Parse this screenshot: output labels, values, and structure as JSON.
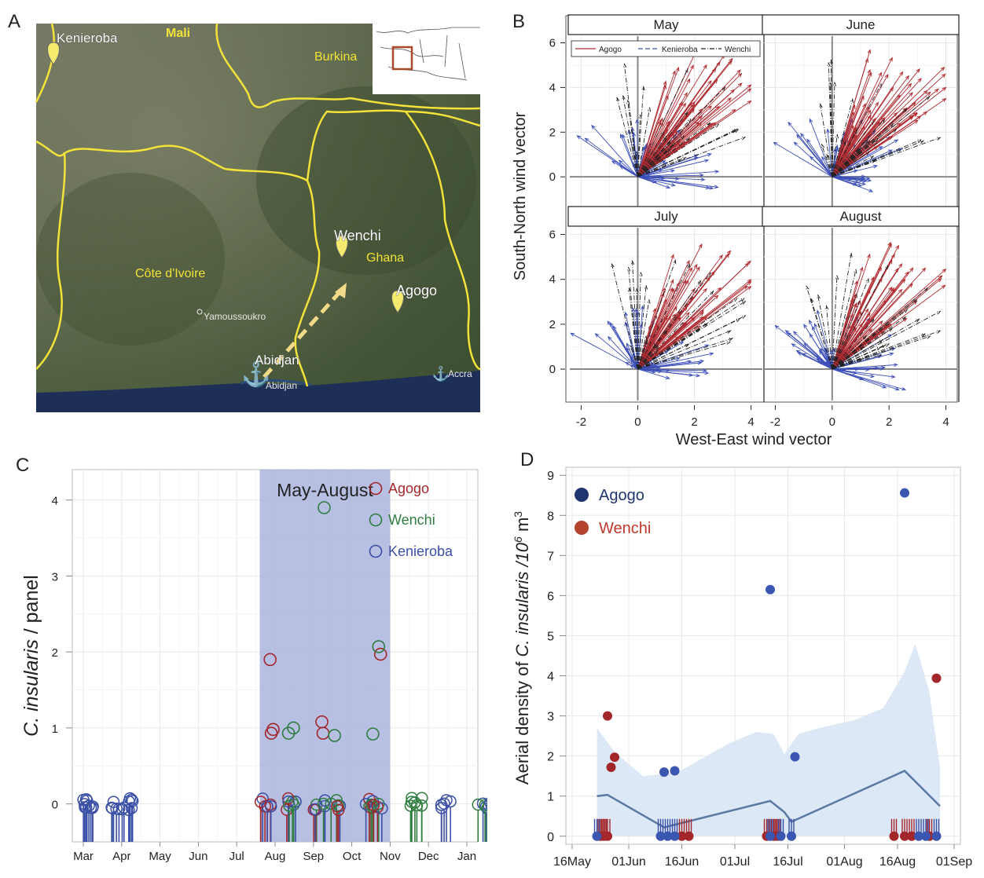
{
  "colors": {
    "agogo_red": "#a3262a",
    "wenchi_green": "#2e7d3e",
    "kenieroba_blue": "#3a4fa6",
    "agogo_dark_blue": "#1f3570",
    "wenchi_brown_red": "#b3432e",
    "shade_blue": "#aab4dd",
    "ci_band": "#dde8f6",
    "smooth_line": "#5b7aa3",
    "border_yellow": "#f2e23a",
    "arrow_yellow": "#f3d98a",
    "wind_red": "#b02a30",
    "wind_blue": "#3d4fb8",
    "wind_black": "#222222"
  },
  "panel_a": {
    "letter": "A",
    "places": {
      "kenieroba": "Kenieroba",
      "mali": "Mali",
      "burkina": "Burkina",
      "wenchi": "Wenchi",
      "ghana": "Ghana",
      "cote_divoire": "Côte d'Ivoire",
      "agogo": "Agogo",
      "yamoussoukro": "Yamoussoukro",
      "abidjan_label": "Abidjan",
      "abidjan_sub": "Abidjan",
      "accra": "Accra"
    },
    "icons": [
      "pin-icon",
      "anchor-icon",
      "dashed-arrow-icon",
      "inset-map-icon"
    ]
  },
  "panel_b": {
    "letter": "B",
    "xlabel": "West-East wind vector",
    "ylabel": "South-North wind vector",
    "months": [
      "May",
      "June",
      "July",
      "August"
    ],
    "legend": [
      "Agogo",
      "Kenieroba",
      "Wenchi"
    ],
    "xticks": [
      "-2",
      "0",
      "2",
      "4"
    ],
    "yticks": [
      "0",
      "2",
      "4",
      "6"
    ]
  },
  "chart_data": [
    {
      "id": "C",
      "type": "scatter",
      "ylabel_italic": "C. insularis",
      "ylabel_rest": " / panel",
      "ylim": [
        -0.5,
        4.4
      ],
      "yticks": [
        "0",
        "1",
        "2",
        "3",
        "4"
      ],
      "months": [
        "Mar",
        "Apr",
        "May",
        "Jun",
        "Jul",
        "Aug",
        "Sep",
        "Oct",
        "Nov",
        "Dec",
        "Jan"
      ],
      "shade_label": "May-August",
      "shade_range_months": [
        4.6,
        8.0
      ],
      "grid": true,
      "legend_position": "top-right",
      "series": [
        {
          "name": "Agogo",
          "color": "#a3262a",
          "points": [
            [
              4.87,
              1.9
            ],
            [
              4.9,
              0.93
            ],
            [
              4.95,
              0.98
            ],
            [
              6.22,
              1.08
            ],
            [
              6.25,
              0.93
            ],
            [
              7.75,
              1.97
            ]
          ]
        },
        {
          "name": "Wenchi",
          "color": "#2e7d3e",
          "points": [
            [
              5.35,
              0.93
            ],
            [
              5.48,
              1.0
            ],
            [
              6.28,
              3.9
            ],
            [
              6.55,
              0.9
            ],
            [
              7.55,
              0.92
            ],
            [
              7.7,
              2.07
            ]
          ]
        },
        {
          "name": "Kenieroba",
          "color": "#3a4fa6",
          "points": []
        }
      ],
      "zero_clusters": [
        {
          "start": 0.0,
          "end": 1.3,
          "colors": [
            "blue"
          ]
        },
        {
          "start": 4.6,
          "end": 5.0,
          "colors": [
            "red",
            "blue"
          ]
        },
        {
          "start": 5.2,
          "end": 5.6,
          "colors": [
            "green",
            "red",
            "blue"
          ]
        },
        {
          "start": 6.0,
          "end": 6.7,
          "colors": [
            "green",
            "red",
            "blue"
          ]
        },
        {
          "start": 7.3,
          "end": 7.9,
          "colors": [
            "green",
            "red",
            "blue"
          ]
        },
        {
          "start": 8.5,
          "end": 8.9,
          "colors": [
            "green"
          ]
        },
        {
          "start": 9.3,
          "end": 9.6,
          "colors": [
            "blue"
          ]
        },
        {
          "start": 10.2,
          "end": 11.0,
          "colors": [
            "blue",
            "green"
          ]
        },
        {
          "start": 11.2,
          "end": 11.5,
          "colors": [
            "blue"
          ]
        }
      ]
    },
    {
      "id": "D",
      "type": "scatter",
      "ylabel_prefix": "Aerial density of ",
      "ylabel_italic": "C. insularis",
      "ylabel_suffix": " /10",
      "ylabel_sup": "6",
      "ylabel_unit": " m",
      "ylabel_sup2": "3",
      "ylim": [
        -0.2,
        9.2
      ],
      "yticks": [
        "0",
        "1",
        "2",
        "3",
        "4",
        "5",
        "6",
        "7",
        "8",
        "9"
      ],
      "xticks": [
        "16May",
        "01Jun",
        "16Jun",
        "01Jul",
        "16Jul",
        "01Aug",
        "16Aug",
        "01Sep"
      ],
      "xlim_days": [
        0,
        108
      ],
      "grid": true,
      "legend_position": "top-left",
      "series": [
        {
          "name": "Agogo",
          "color": "#1f3570",
          "points": [
            [
              26,
              1.6
            ],
            [
              29,
              1.63
            ],
            [
              56,
              6.15
            ],
            [
              63,
              1.98
            ],
            [
              94,
              8.56
            ]
          ]
        },
        {
          "name": "Wenchi",
          "color": "#a3262a",
          "points": [
            [
              10,
              3.0
            ],
            [
              11,
              1.72
            ],
            [
              12,
              1.97
            ],
            [
              103,
              3.94
            ]
          ]
        }
      ],
      "zero_points": {
        "red": [
          8,
          9,
          10,
          31,
          33,
          55,
          57,
          58,
          91,
          94,
          96,
          101
        ],
        "blue": [
          7,
          25,
          27,
          29,
          56,
          59,
          62,
          98,
          100,
          103
        ]
      },
      "smooth_line": [
        [
          7,
          1.0
        ],
        [
          10,
          1.03
        ],
        [
          26,
          0.22
        ],
        [
          56,
          0.88
        ],
        [
          60,
          0.6
        ],
        [
          62,
          0.36
        ],
        [
          94,
          1.63
        ],
        [
          104,
          0.75
        ]
      ],
      "band_upper": [
        [
          7,
          2.7
        ],
        [
          12,
          2.1
        ],
        [
          20,
          1.5
        ],
        [
          30,
          1.6
        ],
        [
          36,
          1.9
        ],
        [
          44,
          2.3
        ],
        [
          52,
          2.6
        ],
        [
          57,
          2.55
        ],
        [
          60,
          2.05
        ],
        [
          64,
          2.55
        ],
        [
          70,
          2.7
        ],
        [
          80,
          2.9
        ],
        [
          88,
          3.2
        ],
        [
          94,
          4.1
        ],
        [
          97,
          4.8
        ],
        [
          101,
          3.6
        ],
        [
          104,
          1.7
        ]
      ],
      "band_lower": [
        [
          7,
          0.0
        ],
        [
          104,
          0.0
        ]
      ]
    }
  ],
  "panel_c": {
    "letter": "C",
    "legend": [
      "Agogo",
      "Wenchi",
      "Kenieroba"
    ]
  },
  "panel_d": {
    "letter": "D",
    "legend": [
      "Agogo",
      "Wenchi"
    ]
  }
}
